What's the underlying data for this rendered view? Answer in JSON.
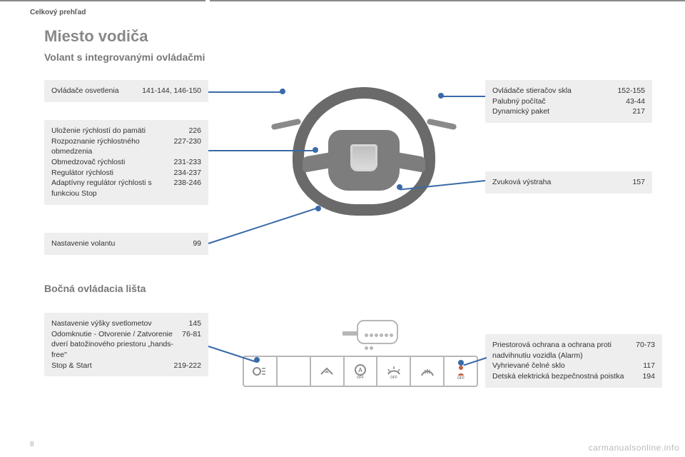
{
  "chapter_label": "Celkový prehľad",
  "page_number": "8",
  "watermark": "carmanualsonline.info",
  "h1": "Miesto vodiča",
  "h2a": "Volant s integrovanými ovládačmi",
  "h2b": "Bočná ovládacia lišta",
  "card_lights": {
    "rows": [
      [
        "Ovládače osvetlenia",
        "141-144, 146-150"
      ]
    ]
  },
  "card_speed": {
    "rows": [
      [
        "Uloženie rýchlostí do pamäti",
        "226"
      ],
      [
        "Rozpoznanie rýchlostného obmedzenia",
        "227-230"
      ],
      [
        "Obmedzovač rýchlosti",
        "231-233"
      ],
      [
        "Regulátor rýchlosti",
        "234-237"
      ],
      [
        "Adaptívny regulátor rýchlosti s funkciou Stop",
        "238-246"
      ]
    ]
  },
  "card_steer": {
    "rows": [
      [
        "Nastavenie volantu",
        "99"
      ]
    ]
  },
  "card_wipers": {
    "rows": [
      [
        "Ovládače stieračov skla",
        "152-155"
      ],
      [
        "Palubný počítač",
        "43-44"
      ],
      [
        "Dynamický paket",
        "217"
      ]
    ]
  },
  "card_horn": {
    "rows": [
      [
        "Zvuková výstraha",
        "157"
      ]
    ]
  },
  "card_headlights": {
    "rows": [
      [
        "Nastavenie výšky svetlometov",
        "145"
      ],
      [
        "Odomknutie - Otvorenie / Zatvorenie dverí batožinového priestoru „hands-free\"",
        "76-81"
      ],
      [
        "Stop & Start",
        "219-222"
      ]
    ]
  },
  "card_alarm": {
    "rows": [
      [
        "Priestorová ochrana a ochrana proti nadvihnutiu vozidla (Alarm)",
        "70-73"
      ],
      [
        "Vyhrievané čelné sklo",
        "117"
      ],
      [
        "Detská elektrická bezpečnostná poistka",
        "194"
      ]
    ]
  },
  "colors": {
    "card_bg": "#eeeeee",
    "connector": "#3a6aa8",
    "text": "#333333",
    "heading": "#888888"
  }
}
